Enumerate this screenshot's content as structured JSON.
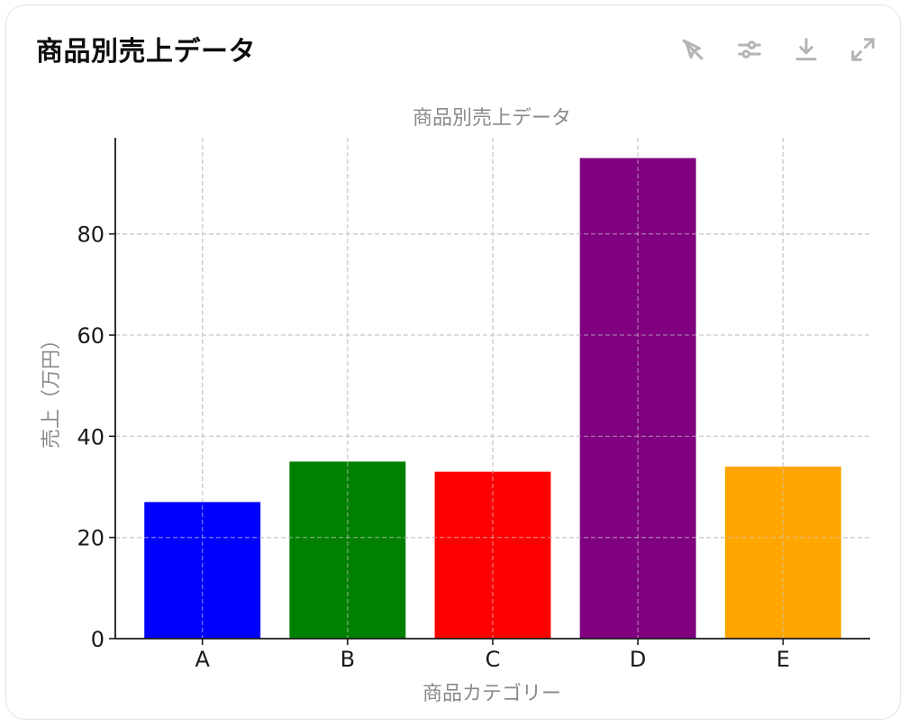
{
  "card": {
    "title": "商品別売上データ"
  },
  "toolbar": {
    "items": [
      {
        "name": "hide-interactive-button",
        "icon": "cursor-off-icon"
      },
      {
        "name": "adjust-button",
        "icon": "sliders-icon"
      },
      {
        "name": "download-button",
        "icon": "download-icon"
      },
      {
        "name": "expand-button",
        "icon": "expand-icon"
      }
    ]
  },
  "chart_data": {
    "type": "bar",
    "title": "商品別売上データ",
    "xlabel": "商品カテゴリー",
    "ylabel": "売上（万円）",
    "categories": [
      "A",
      "B",
      "C",
      "D",
      "E"
    ],
    "values": [
      27,
      35,
      33,
      95,
      34
    ],
    "colors": [
      "#0000ff",
      "#008000",
      "#ff0000",
      "#800080",
      "#ffa500"
    ],
    "ylim": [
      0,
      99
    ],
    "yticks": [
      0,
      20,
      40,
      60,
      80
    ],
    "grid": true
  }
}
